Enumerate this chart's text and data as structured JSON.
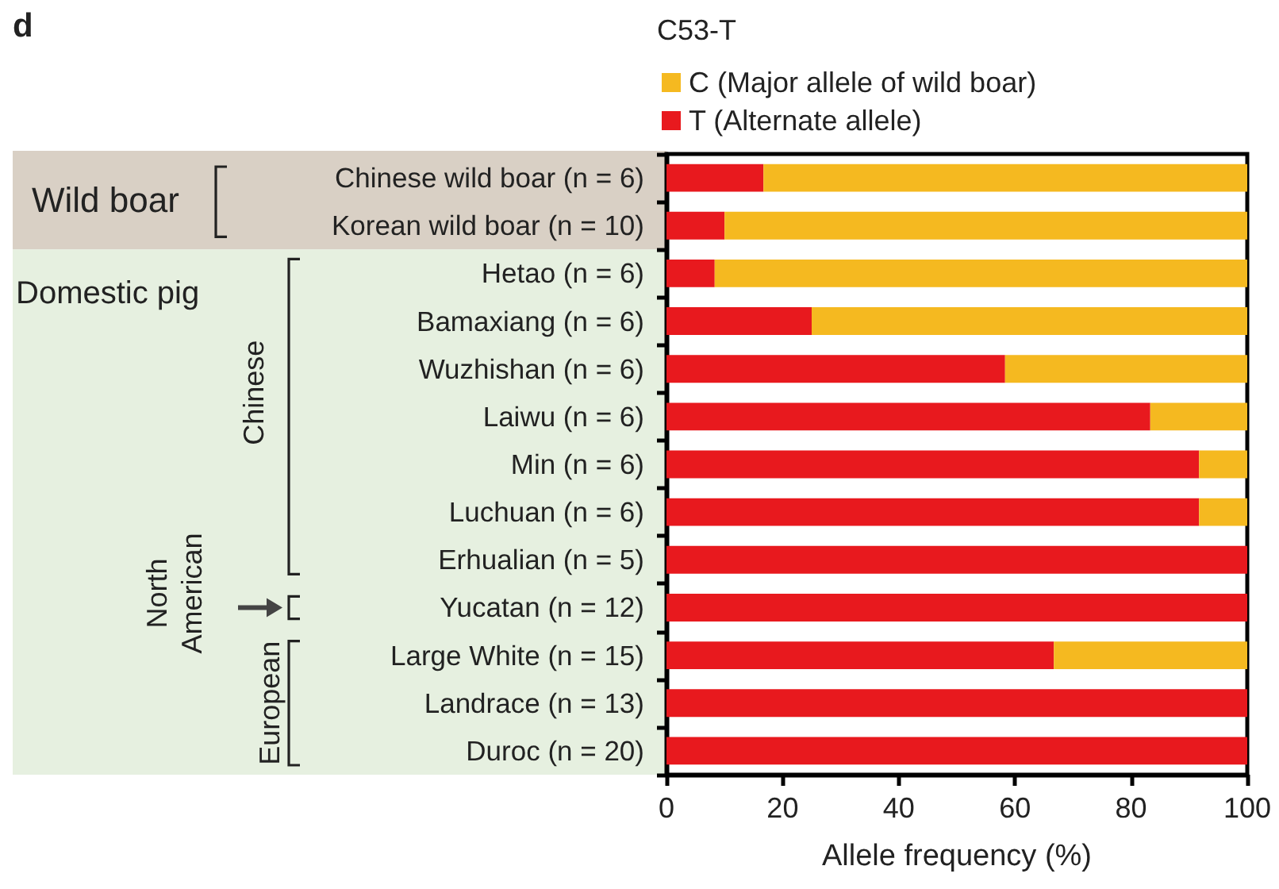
{
  "chart_data": {
    "type": "bar",
    "orientation": "horizontal",
    "stacked": true,
    "legend_title": "C53-T",
    "xlabel": "Allele frequency (%)",
    "categories": [
      "Chinese wild boar (n = 6)",
      "Korean wild boar (n = 10)",
      "Hetao (n = 6)",
      "Bamaxiang (n = 6)",
      "Wuzhishan (n = 6)",
      "Laiwu (n = 6)",
      "Min (n = 6)",
      "Luchuan (n = 6)",
      "Erhualian (n = 5)",
      "Yucatan (n = 12)",
      "Large White (n = 15)",
      "Landrace (n = 13)",
      "Duroc (n = 20)"
    ],
    "series": [
      {
        "name": "T (Alternate allele)",
        "color": "#e8191e",
        "values": [
          16.7,
          10,
          8.3,
          25,
          58.3,
          83.3,
          91.7,
          91.7,
          100,
          100,
          66.7,
          100,
          100
        ]
      },
      {
        "name": "C (Major allele of wild boar)",
        "color": "#f5b920",
        "values": [
          83.3,
          90,
          91.7,
          75,
          41.7,
          16.7,
          8.3,
          8.3,
          0,
          0,
          33.3,
          0,
          0
        ]
      }
    ],
    "xlim": [
      0,
      100
    ],
    "xticks": [
      0,
      20,
      40,
      60,
      80,
      100
    ],
    "grid": false,
    "legend": "top",
    "annotations": [
      "d",
      "Wild boar",
      "Domestic pig",
      "Chinese",
      "North American",
      "European"
    ]
  }
}
